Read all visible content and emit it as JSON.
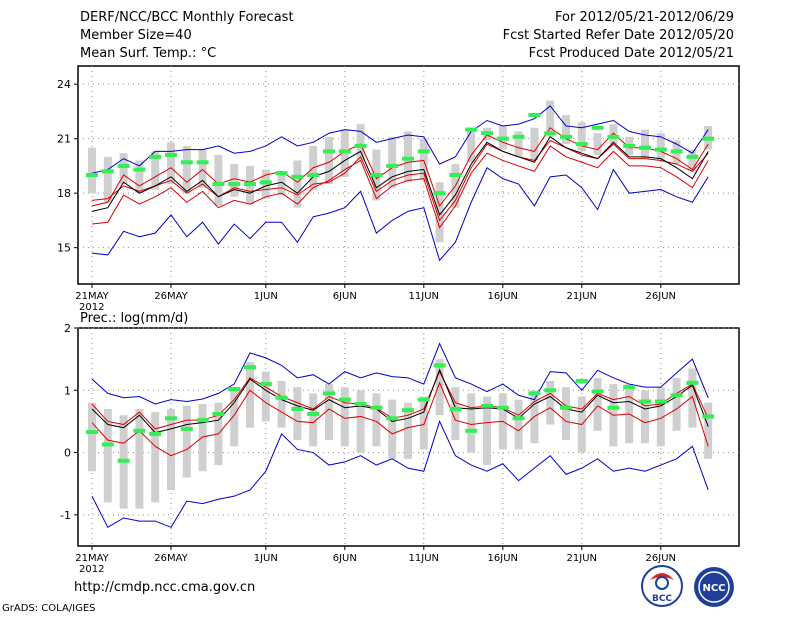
{
  "header": {
    "left": [
      "DERF/NCC/BCC Monthly Forecast",
      "Member Size=40",
      "Mean Surf. Temp.: °C"
    ],
    "right": [
      "For 2012/05/21-2012/06/29",
      "Fcst Started Refer Date 2012/05/20",
      "Fcst Produced Date 2012/05/21"
    ]
  },
  "footer": {
    "url": "http://cmdp.ncc.cma.gov.cn",
    "credit": "GrADS: COLA/IGES"
  },
  "logos": {
    "bcc_label": "BCC",
    "ncc_label": "NCC"
  },
  "colors": {
    "box": "#cfcfcf",
    "median": "#000000",
    "quartile": "#dd0000",
    "extreme": "#0000cc",
    "obs": "#33ee55",
    "grid": "#888888"
  },
  "chart_data": [
    {
      "type": "line",
      "title": "Mean Surf. Temp.: °C",
      "x_tick_labels": [
        "21MAY",
        "26MAY",
        "1JUN",
        "6JUN",
        "11JUN",
        "16JUN",
        "21JUN",
        "26JUN"
      ],
      "x_tick_days": [
        0,
        5,
        11,
        16,
        21,
        26,
        31,
        36
      ],
      "year_label": "2012",
      "ylim": [
        13,
        25
      ],
      "yticks": [
        15,
        18,
        21,
        24
      ],
      "days": 40,
      "series": [
        {
          "name": "max",
          "values": [
            14.7,
            14.6,
            15.9,
            15.6,
            15.8,
            16.8,
            15.6,
            16.4,
            15.2,
            16.3,
            15.5,
            16.4,
            16.4,
            15.3,
            16.7,
            16.9,
            17.2,
            18.1,
            15.8,
            16.5,
            17.0,
            17.2,
            14.3,
            15.3,
            17.5,
            19.4,
            18.8,
            18.5,
            17.3,
            18.9,
            19.0,
            18.3,
            17.1,
            19.3,
            18.0,
            18.1,
            18.2,
            17.8,
            17.5,
            18.9
          ]
        },
        {
          "name": "q75",
          "values": [
            17.6,
            17.7,
            18.4,
            18.1,
            18.4,
            18.7,
            18.0,
            18.5,
            17.8,
            18.3,
            18.1,
            18.2,
            18.3,
            17.9,
            18.5,
            18.6,
            19.1,
            20.0,
            18.1,
            18.7,
            19.0,
            19.1,
            16.5,
            17.6,
            19.4,
            20.7,
            20.3,
            20.0,
            19.8,
            20.9,
            20.5,
            20.1,
            19.9,
            20.7,
            19.9,
            19.9,
            19.8,
            19.6,
            19.2,
            20.2
          ]
        },
        {
          "name": "median",
          "values": [
            17.0,
            17.2,
            18.6,
            18.0,
            18.4,
            18.9,
            18.1,
            18.7,
            17.8,
            18.2,
            18.0,
            18.4,
            18.6,
            18.0,
            18.9,
            19.2,
            19.8,
            20.3,
            18.3,
            18.9,
            19.2,
            19.3,
            16.8,
            17.9,
            19.6,
            20.8,
            20.3,
            20.0,
            19.7,
            21.1,
            20.5,
            20.2,
            19.9,
            20.8,
            20.0,
            20.0,
            19.9,
            19.4,
            18.8,
            20.3
          ]
        },
        {
          "name": "q25",
          "values": [
            16.3,
            16.4,
            17.9,
            17.4,
            17.8,
            18.3,
            17.5,
            18.1,
            17.2,
            17.6,
            17.4,
            17.8,
            18.0,
            17.4,
            18.3,
            18.7,
            19.3,
            19.8,
            17.7,
            18.4,
            18.7,
            18.8,
            16.1,
            17.3,
            19.1,
            20.2,
            19.8,
            19.5,
            19.2,
            20.6,
            20.0,
            19.7,
            19.4,
            20.3,
            19.5,
            19.5,
            19.4,
            18.9,
            18.3,
            19.8
          ]
        },
        {
          "name": "min",
          "values": [
            17.3,
            17.5,
            19.0,
            18.4,
            18.9,
            19.4,
            18.6,
            19.3,
            18.5,
            18.8,
            18.6,
            19.0,
            19.2,
            18.6,
            19.4,
            19.7,
            20.3,
            20.7,
            18.8,
            19.4,
            19.7,
            19.8,
            17.3,
            18.4,
            20.1,
            21.2,
            20.8,
            20.5,
            20.3,
            21.6,
            21.0,
            20.6,
            20.4,
            21.3,
            20.5,
            20.5,
            20.3,
            19.9,
            19.3,
            20.7
          ]
        },
        {
          "name": "max_blue",
          "values": [
            19.1,
            19.3,
            19.9,
            19.5,
            20.3,
            20.3,
            20.4,
            20.4,
            20.6,
            20.2,
            20.3,
            20.6,
            21.1,
            20.6,
            20.8,
            21.3,
            21.5,
            21.4,
            20.8,
            21.0,
            21.2,
            21.1,
            19.6,
            20.0,
            21.4,
            22.0,
            21.7,
            21.8,
            22.1,
            22.8,
            21.7,
            21.6,
            21.8,
            22.0,
            21.4,
            21.2,
            21.1,
            20.7,
            20.2,
            21.5
          ]
        }
      ],
      "box_low": [
        18.0,
        17.5,
        18.5,
        18.0,
        18.2,
        18.5,
        18.0,
        18.3,
        17.3,
        17.8,
        17.4,
        17.7,
        17.9,
        17.2,
        18.2,
        18.5,
        18.9,
        19.8,
        17.6,
        18.3,
        18.6,
        18.7,
        15.3,
        17.2,
        19.7,
        20.9,
        20.4,
        20.0,
        19.8,
        21.1,
        20.7,
        20.3,
        20.1,
        20.7,
        20.1,
        19.9,
        19.8,
        19.6,
        19.2,
        20.4
      ],
      "box_high": [
        20.5,
        20.0,
        20.2,
        19.8,
        20.3,
        20.8,
        20.6,
        20.4,
        20.1,
        19.6,
        19.5,
        19.3,
        19.2,
        19.8,
        20.6,
        21.1,
        21.5,
        21.8,
        20.4,
        21.1,
        21.4,
        21.0,
        18.6,
        19.6,
        21.6,
        21.6,
        21.7,
        21.4,
        21.6,
        23.1,
        22.3,
        21.9,
        21.3,
        21.8,
        21.1,
        21.5,
        21.3,
        20.9,
        20.4,
        21.7
      ],
      "box_whisker_low": [
        16.8,
        16.8,
        17.5,
        17.0,
        17.4,
        17.6,
        17.0,
        17.5,
        16.6,
        17.0,
        16.5,
        16.6,
        16.6,
        16.3,
        17.2,
        17.6,
        18.0,
        18.9,
        16.8,
        17.5,
        17.8,
        17.8,
        14.8,
        16.4,
        18.6,
        20.0,
        19.6,
        19.3,
        19.1,
        20.2,
        19.9,
        19.5,
        19.3,
        19.9,
        19.3,
        19.2,
        19.1,
        18.8,
        18.3,
        19.6
      ],
      "obs": [
        19.0,
        19.2,
        19.5,
        19.3,
        20.0,
        20.1,
        19.7,
        19.7,
        18.5,
        18.5,
        18.5,
        18.6,
        19.1,
        18.9,
        19.0,
        20.3,
        20.3,
        20.6,
        19.0,
        19.5,
        19.9,
        20.3,
        18.0,
        19.0,
        21.5,
        21.3,
        21.0,
        21.1,
        22.3,
        21.3,
        21.1,
        20.7,
        21.6,
        21.1,
        20.6,
        20.5,
        20.4,
        20.3,
        20.0,
        21.0
      ]
    },
    {
      "type": "line",
      "title": "Prec.: log(mm/d)",
      "x_tick_labels": [
        "21MAY",
        "26MAY",
        "1JUN",
        "6JUN",
        "11JUN",
        "16JUN",
        "21JUN",
        "26JUN"
      ],
      "x_tick_days": [
        0,
        5,
        11,
        16,
        21,
        26,
        31,
        36
      ],
      "year_label": "2012",
      "ylim": [
        -1.5,
        2
      ],
      "yticks": [
        -1,
        0,
        1,
        2
      ],
      "days": 40,
      "series": [
        {
          "name": "max",
          "values": [
            1.18,
            0.95,
            0.88,
            0.9,
            0.78,
            0.85,
            0.82,
            0.86,
            0.95,
            1.1,
            1.6,
            1.52,
            1.4,
            1.2,
            1.25,
            1.1,
            1.3,
            1.2,
            1.28,
            1.22,
            1.2,
            1.1,
            1.75,
            1.2,
            1.1,
            0.98,
            1.1,
            0.92,
            0.85,
            1.3,
            1.28,
            1.0,
            1.32,
            1.2,
            1.1,
            1.05,
            1.05,
            1.28,
            1.5,
            0.88
          ]
        },
        {
          "name": "q75",
          "values": [
            0.78,
            0.5,
            0.45,
            0.65,
            0.38,
            0.45,
            0.52,
            0.52,
            0.6,
            0.85,
            1.2,
            1.05,
            0.9,
            0.8,
            0.7,
            0.9,
            0.8,
            0.78,
            0.72,
            0.55,
            0.6,
            0.7,
            1.3,
            0.8,
            0.72,
            0.75,
            0.72,
            0.6,
            0.82,
            0.95,
            0.75,
            0.7,
            0.95,
            0.85,
            0.9,
            0.75,
            0.78,
            0.95,
            1.1,
            0.55
          ]
        },
        {
          "name": "median",
          "values": [
            0.7,
            0.45,
            0.4,
            0.6,
            0.32,
            0.38,
            0.45,
            0.48,
            0.52,
            0.8,
            1.18,
            1.0,
            0.85,
            0.75,
            0.68,
            0.85,
            0.72,
            0.75,
            0.7,
            0.5,
            0.55,
            0.65,
            1.33,
            0.72,
            0.7,
            0.72,
            0.7,
            0.55,
            0.78,
            0.9,
            0.7,
            0.65,
            0.92,
            0.8,
            0.82,
            0.7,
            0.75,
            0.9,
            1.08,
            0.42
          ]
        },
        {
          "name": "q25",
          "values": [
            0.48,
            0.2,
            0.15,
            0.35,
            0.1,
            -0.05,
            0.05,
            0.25,
            0.3,
            0.6,
            1.0,
            0.8,
            0.65,
            0.5,
            0.48,
            0.7,
            0.55,
            0.58,
            0.5,
            0.3,
            0.4,
            0.45,
            1.12,
            0.52,
            0.45,
            0.48,
            0.5,
            0.35,
            0.58,
            0.72,
            0.5,
            0.45,
            0.75,
            0.6,
            0.62,
            0.48,
            0.55,
            0.7,
            0.9,
            0.1
          ]
        },
        {
          "name": "min",
          "values": [
            -0.7,
            -1.2,
            -1.05,
            -1.1,
            -1.1,
            -1.2,
            -0.78,
            -0.82,
            -0.75,
            -0.7,
            -0.6,
            -0.3,
            0.3,
            0.05,
            0.0,
            -0.2,
            -0.15,
            -0.05,
            -0.2,
            -0.1,
            -0.25,
            -0.3,
            0.5,
            -0.05,
            -0.2,
            -0.3,
            -0.18,
            -0.45,
            -0.25,
            -0.05,
            -0.35,
            -0.25,
            -0.1,
            -0.3,
            -0.25,
            -0.3,
            -0.2,
            -0.1,
            0.1,
            -0.6
          ]
        }
      ],
      "box_low": [
        -0.3,
        -0.8,
        -0.9,
        -0.9,
        -0.8,
        -0.6,
        -0.4,
        -0.3,
        -0.2,
        0.1,
        0.4,
        0.5,
        0.4,
        0.2,
        0.1,
        0.2,
        0.1,
        0.0,
        0.1,
        -0.1,
        -0.1,
        0.05,
        0.6,
        0.2,
        0.0,
        -0.2,
        0.05,
        0.05,
        0.15,
        0.45,
        0.2,
        0.0,
        0.35,
        0.1,
        0.15,
        0.15,
        0.1,
        0.35,
        0.4,
        -0.1
      ],
      "box_high": [
        0.8,
        0.7,
        0.6,
        0.7,
        0.65,
        0.7,
        0.75,
        0.78,
        0.8,
        1.05,
        1.45,
        1.3,
        1.15,
        1.05,
        0.95,
        1.1,
        1.05,
        1.0,
        0.95,
        0.85,
        0.8,
        0.9,
        1.5,
        1.05,
        0.95,
        0.9,
        0.95,
        0.85,
        1.0,
        1.15,
        1.05,
        0.9,
        1.2,
        1.1,
        1.1,
        1.0,
        1.05,
        1.2,
        1.35,
        0.8
      ],
      "obs": [
        0.33,
        0.13,
        -0.13,
        0.35,
        0.3,
        0.55,
        0.38,
        0.52,
        0.62,
        1.02,
        1.37,
        1.1,
        0.88,
        0.7,
        0.62,
        0.95,
        0.85,
        0.78,
        0.72,
        0.55,
        0.68,
        0.85,
        1.4,
        0.7,
        0.35,
        0.75,
        0.72,
        0.55,
        0.95,
        1.0,
        0.72,
        1.15,
        0.98,
        0.72,
        1.05,
        0.82,
        0.82,
        0.92,
        1.12,
        0.58
      ]
    }
  ]
}
